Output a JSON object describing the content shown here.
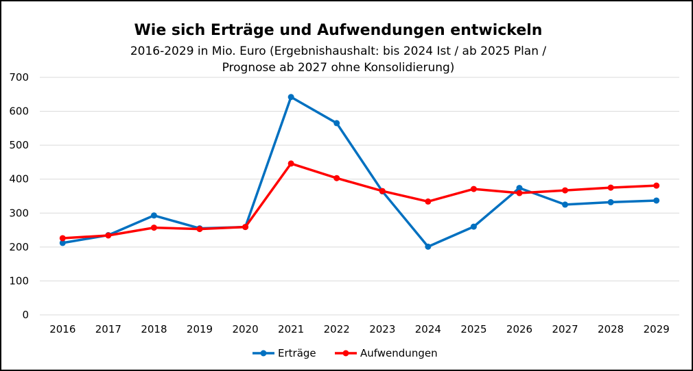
{
  "chart_data": {
    "type": "line",
    "title": "Wie sich Erträge und Aufwendungen entwickeln",
    "subtitle_lines": [
      "2016-2029 in Mio. Euro (Ergebnishaushalt: bis 2024 Ist / ab 2025 Plan /",
      "Prognose ab 2027 ohne Konsolidierung)"
    ],
    "x": [
      "2016",
      "2017",
      "2018",
      "2019",
      "2020",
      "2021",
      "2022",
      "2023",
      "2024",
      "2025",
      "2026",
      "2027",
      "2028",
      "2029"
    ],
    "ylim": [
      0,
      700
    ],
    "yticks": [
      0,
      100,
      200,
      300,
      400,
      500,
      600,
      700
    ],
    "grid": true,
    "legend_position": "bottom",
    "series": [
      {
        "name": "Erträge",
        "color": "#0070C0",
        "values": [
          212,
          235,
          293,
          255,
          259,
          642,
          565,
          364,
          201,
          260,
          374,
          325,
          332,
          337
        ]
      },
      {
        "name": "Aufwendungen",
        "color": "#FF0000",
        "values": [
          226,
          234,
          257,
          253,
          259,
          446,
          403,
          365,
          334,
          371,
          359,
          367,
          375,
          381
        ]
      }
    ]
  }
}
